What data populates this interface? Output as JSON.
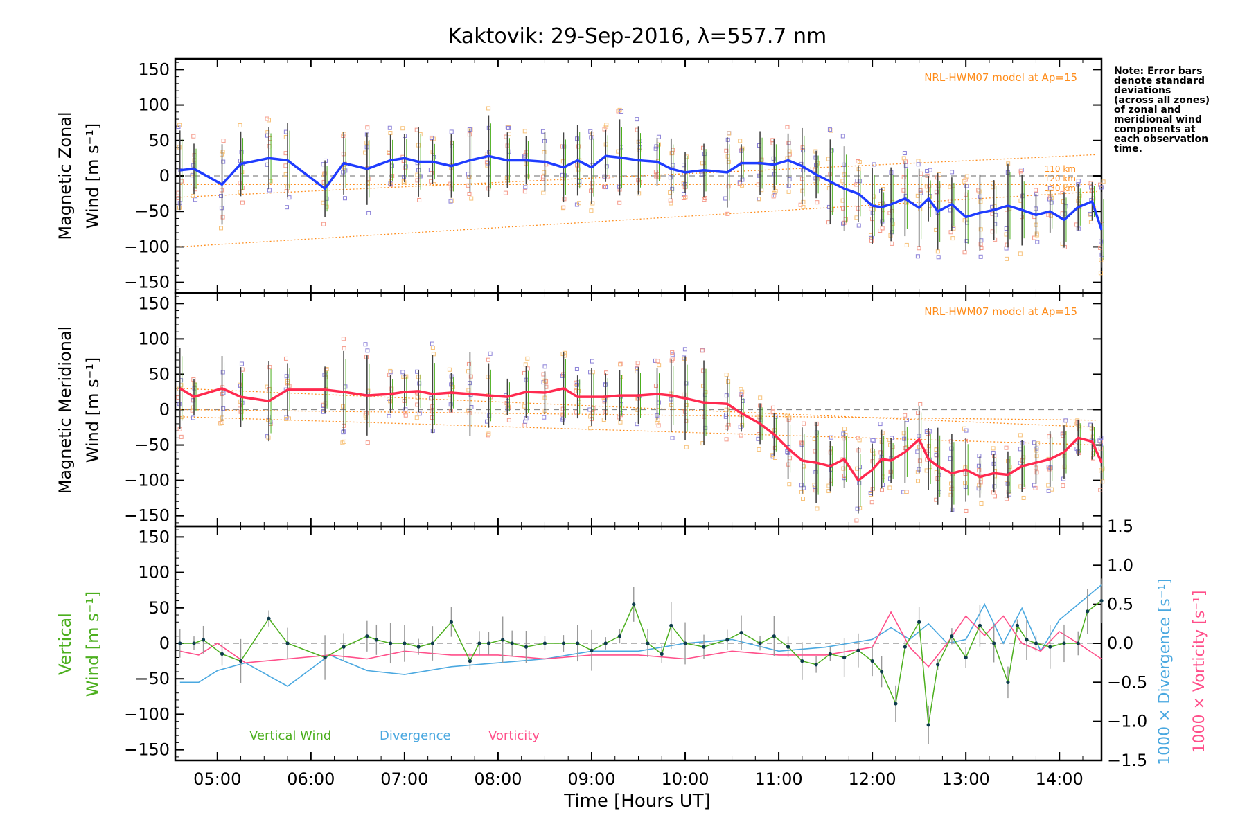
{
  "colors": {
    "zonal": "#1f3cff",
    "meridional": "#ff2a4f",
    "vertical": "#4caf1e",
    "divergence": "#4aa8e0",
    "vorticity": "#ff4f8a",
    "model": "#ff8c1a",
    "error_bar": "#444444",
    "scatter_blue": "#8c82d8",
    "scatter_red": "#f59a8a",
    "scatter_yellow": "#f7c27a"
  },
  "chart_data": [
    {
      "type": "line",
      "title": "Kaktovik: 29-Sep-2016, λ=557.7 nm",
      "ylabel_line1": "Magnetic Zonal",
      "ylabel_line2": "Wind [m s⁻¹]",
      "ylim": [
        -165,
        165
      ],
      "yticks": [
        "150",
        "100",
        "50",
        "0",
        "−50",
        "−100",
        "−150"
      ],
      "model_label": "NRL-HWM07 model at Ap=15",
      "model_heights": [
        "110 km",
        "120 km",
        "130 km"
      ],
      "note": [
        "Note: Error bars",
        "denote standard",
        "deviations",
        "(across all zones)",
        "of zonal and",
        "meridional wind",
        "components at",
        "each observation",
        "time."
      ],
      "series": [
        {
          "x": [
            4.6,
            4.75,
            5.05,
            5.25,
            5.55,
            5.75,
            6.15,
            6.35,
            6.6,
            6.85,
            7.0,
            7.15,
            7.3,
            7.5,
            7.7,
            7.9,
            8.1,
            8.3,
            8.5,
            8.7,
            8.85,
            9.0,
            9.15,
            9.3,
            9.5,
            9.7,
            9.85,
            10.0,
            10.2,
            10.45,
            10.6,
            10.8,
            10.95,
            11.1,
            11.25,
            11.4,
            11.55,
            11.7,
            11.85,
            12.0,
            12.1,
            12.2,
            12.35,
            12.5,
            12.6,
            12.7,
            12.85,
            13.0,
            13.15,
            13.3,
            13.45,
            13.6,
            13.75,
            13.9,
            14.05,
            14.2,
            14.35,
            14.45
          ],
          "values": [
            8,
            10,
            -12,
            17,
            25,
            22,
            -18,
            18,
            10,
            22,
            25,
            20,
            20,
            14,
            22,
            28,
            22,
            22,
            20,
            12,
            22,
            12,
            28,
            26,
            22,
            20,
            10,
            5,
            8,
            5,
            18,
            18,
            16,
            22,
            14,
            2,
            -8,
            -18,
            -25,
            -42,
            -44,
            -40,
            -32,
            -45,
            -32,
            -50,
            -40,
            -58,
            -52,
            -48,
            -42,
            -48,
            -55,
            -50,
            -62,
            -44,
            -36,
            -76
          ]
        }
      ],
      "model_curves": [
        {
          "name": "110 km",
          "x": [
            4.6,
            14.4
          ],
          "values": [
            -30,
            30
          ]
        },
        {
          "name": "120 km",
          "x": [
            4.6,
            14.4
          ],
          "values": [
            -12,
            -12
          ]
        },
        {
          "name": "130 km",
          "x": [
            4.6,
            14.4
          ],
          "values": [
            -100,
            -22
          ]
        }
      ]
    },
    {
      "type": "line",
      "ylabel_line1": "Magnetic Meridional",
      "ylabel_line2": "Wind [m s⁻¹]",
      "ylim": [
        -165,
        165
      ],
      "yticks": [
        "150",
        "100",
        "50",
        "0",
        "−50",
        "−100",
        "−150"
      ],
      "model_label": "NRL-HWM07 model at Ap=15",
      "series": [
        {
          "x": [
            4.6,
            4.75,
            5.05,
            5.25,
            5.55,
            5.75,
            6.15,
            6.35,
            6.6,
            6.85,
            7.0,
            7.15,
            7.3,
            7.5,
            7.7,
            7.9,
            8.1,
            8.3,
            8.5,
            8.7,
            8.85,
            9.0,
            9.15,
            9.3,
            9.5,
            9.7,
            9.85,
            10.0,
            10.2,
            10.45,
            10.6,
            10.8,
            10.95,
            11.1,
            11.25,
            11.4,
            11.55,
            11.7,
            11.85,
            12.0,
            12.1,
            12.2,
            12.35,
            12.5,
            12.6,
            12.7,
            12.85,
            13.0,
            13.15,
            13.3,
            13.45,
            13.6,
            13.75,
            13.9,
            14.05,
            14.2,
            14.35,
            14.45
          ],
          "values": [
            30,
            18,
            30,
            18,
            12,
            28,
            28,
            25,
            20,
            22,
            25,
            26,
            22,
            24,
            22,
            20,
            18,
            25,
            24,
            30,
            18,
            18,
            18,
            20,
            20,
            22,
            20,
            16,
            10,
            8,
            -5,
            -20,
            -35,
            -55,
            -72,
            -75,
            -80,
            -70,
            -100,
            -85,
            -70,
            -72,
            -60,
            -42,
            -70,
            -80,
            -90,
            -85,
            -95,
            -90,
            -92,
            -80,
            -75,
            -70,
            -60,
            -40,
            -45,
            -75
          ]
        }
      ],
      "model_curves": [
        {
          "name": "110 km",
          "x": [
            4.6,
            14.4
          ],
          "values": [
            30,
            -25
          ]
        },
        {
          "name": "120 km",
          "x": [
            4.6,
            14.4
          ],
          "values": [
            0,
            -15
          ]
        },
        {
          "name": "130 km",
          "x": [
            4.6,
            14.4
          ],
          "values": [
            -10,
            -50
          ]
        }
      ]
    },
    {
      "type": "line",
      "ylabel_line1": "Vertical",
      "ylabel_line2": "Wind [m s⁻¹]",
      "ylim": [
        -165,
        165
      ],
      "yticks": [
        "150",
        "100",
        "50",
        "0",
        "−50",
        "−100",
        "−150"
      ],
      "right_ylim": [
        -1.5,
        1.5
      ],
      "right_yticks": [
        "1.5",
        "1.0",
        "0.5",
        "0.0",
        "−0.5",
        "−1.0",
        "−1.5"
      ],
      "right_label_divergence": "1000 × Divergence [s⁻¹]",
      "right_label_vorticity": "1000 × Vorticity [s⁻¹]",
      "xlabel": "Time [Hours UT]",
      "xticks": [
        "05:00",
        "06:00",
        "07:00",
        "08:00",
        "09:00",
        "10:00",
        "11:00",
        "12:00",
        "13:00",
        "14:00"
      ],
      "xlim": [
        4.55,
        14.45
      ],
      "series": [
        {
          "name": "Vertical Wind",
          "x": [
            4.6,
            4.75,
            4.85,
            5.05,
            5.25,
            5.55,
            5.75,
            6.15,
            6.35,
            6.6,
            6.7,
            6.85,
            7.0,
            7.15,
            7.3,
            7.5,
            7.7,
            7.8,
            7.9,
            8.05,
            8.15,
            8.3,
            8.5,
            8.7,
            8.85,
            9.0,
            9.15,
            9.3,
            9.45,
            9.6,
            9.75,
            9.85,
            10.0,
            10.2,
            10.45,
            10.6,
            10.8,
            10.95,
            11.1,
            11.25,
            11.4,
            11.55,
            11.7,
            11.85,
            12.0,
            12.1,
            12.25,
            12.35,
            12.5,
            12.6,
            12.7,
            12.85,
            13.0,
            13.15,
            13.3,
            13.45,
            13.55,
            13.65,
            13.75,
            13.9,
            14.05,
            14.2,
            14.3,
            14.45
          ],
          "values": [
            0,
            0,
            5,
            -15,
            -25,
            35,
            0,
            -20,
            -5,
            10,
            5,
            0,
            0,
            -5,
            0,
            30,
            -25,
            0,
            0,
            5,
            0,
            -5,
            0,
            0,
            0,
            -10,
            0,
            10,
            55,
            0,
            -15,
            25,
            0,
            -5,
            5,
            15,
            0,
            10,
            -5,
            -25,
            -30,
            -15,
            -20,
            -10,
            -25,
            -40,
            -85,
            -5,
            30,
            -115,
            -30,
            10,
            -20,
            25,
            0,
            -55,
            25,
            5,
            0,
            -5,
            0,
            0,
            45,
            60
          ]
        },
        {
          "name": "Divergence",
          "scale": "right",
          "x": [
            4.6,
            4.8,
            5.0,
            5.3,
            5.75,
            6.2,
            6.6,
            7.0,
            7.5,
            8.0,
            8.5,
            9.0,
            9.5,
            10.0,
            10.5,
            11.0,
            11.5,
            12.0,
            12.2,
            12.4,
            12.6,
            12.8,
            13.0,
            13.2,
            13.4,
            13.6,
            13.8,
            14.0,
            14.2,
            14.45
          ],
          "values": [
            -0.5,
            -0.5,
            -0.35,
            -0.25,
            -0.55,
            -0.15,
            -0.35,
            -0.4,
            -0.3,
            -0.25,
            -0.2,
            -0.1,
            -0.1,
            0.0,
            0.05,
            -0.1,
            -0.05,
            0.05,
            0.2,
            0.05,
            0.25,
            0.0,
            0.05,
            0.5,
            0.0,
            0.45,
            -0.1,
            0.3,
            0.5,
            0.75
          ]
        },
        {
          "name": "Vorticity",
          "scale": "right",
          "x": [
            4.6,
            4.8,
            5.0,
            5.3,
            5.75,
            6.2,
            6.6,
            7.0,
            7.5,
            8.0,
            8.5,
            9.0,
            9.5,
            10.0,
            10.5,
            11.0,
            11.5,
            12.0,
            12.2,
            12.4,
            12.6,
            12.8,
            13.0,
            13.2,
            13.4,
            13.6,
            13.8,
            14.0,
            14.2,
            14.45
          ],
          "values": [
            -0.1,
            -0.15,
            0.0,
            -0.25,
            -0.2,
            -0.15,
            -0.2,
            -0.1,
            -0.15,
            -0.15,
            -0.2,
            -0.15,
            -0.15,
            -0.2,
            -0.1,
            -0.15,
            -0.15,
            -0.05,
            0.4,
            -0.05,
            -0.3,
            0.0,
            0.35,
            0.1,
            0.35,
            0.0,
            -0.1,
            0.15,
            0.0,
            -0.2
          ]
        }
      ],
      "legend": [
        "Vertical Wind",
        "Divergence",
        "Vorticity"
      ]
    }
  ]
}
